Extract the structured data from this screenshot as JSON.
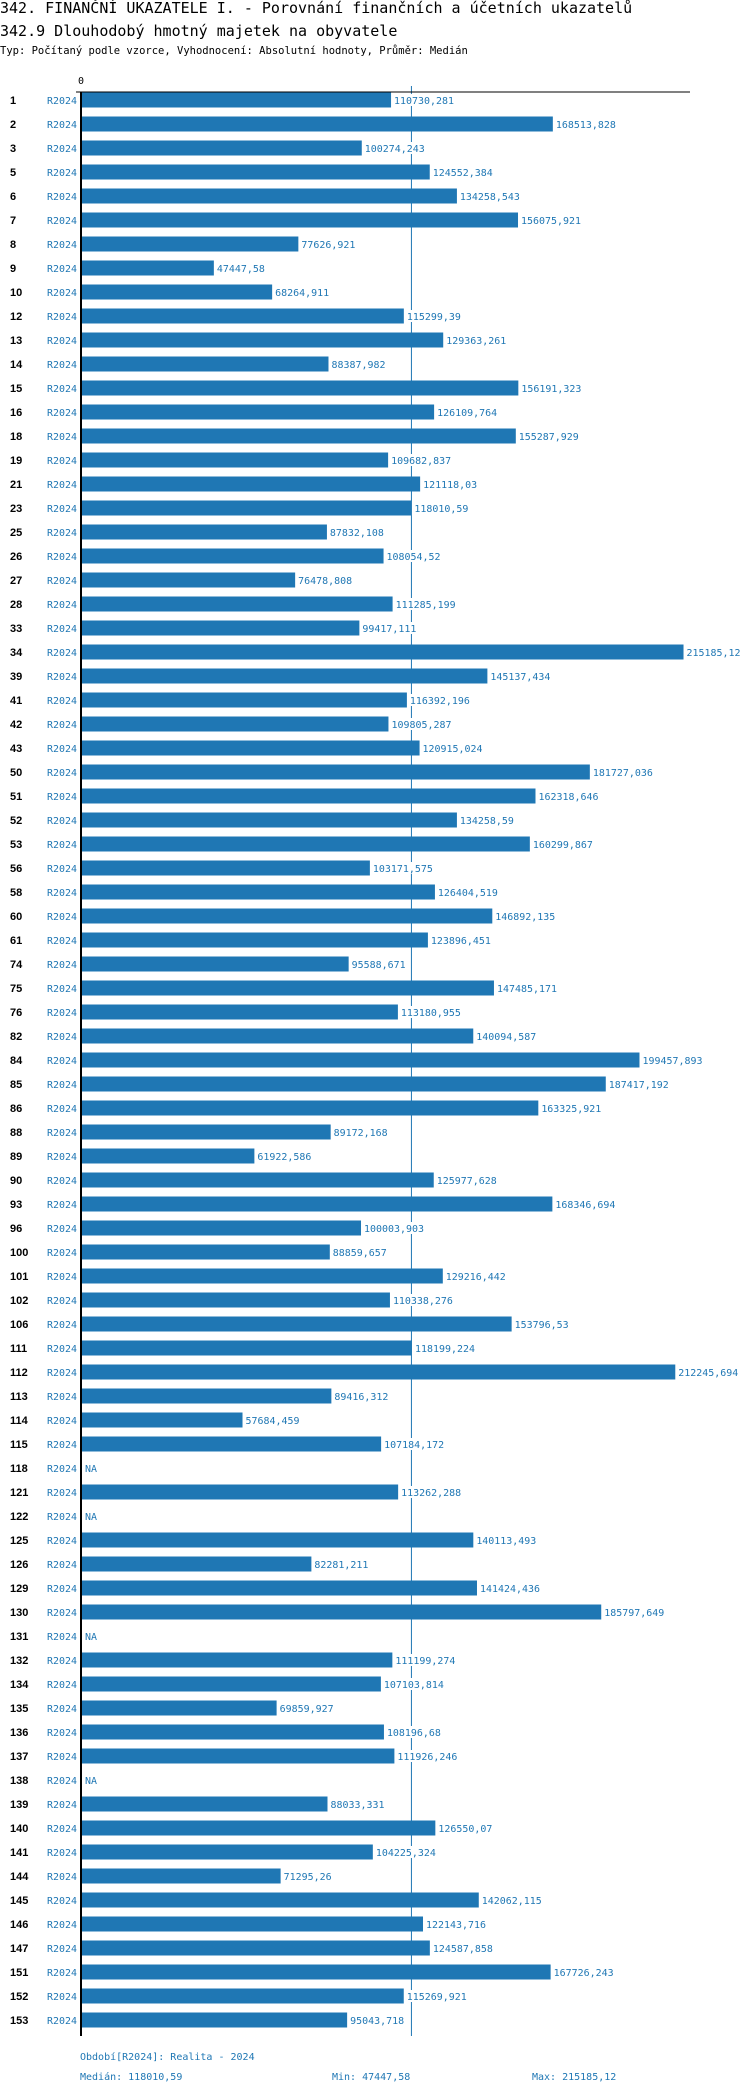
{
  "header": {
    "title": "342. FINANČNÍ UKAZATELE I. - Porovnání finančních a účetních ukazatelů",
    "subtitle": "342.9 Dlouhodobý hmotný majetek na obyvatele",
    "type_line": "Typ: Počítaný podle vzorce, Vyhodnocení: Absolutní hodnoty, Průměr: Medián"
  },
  "footer": {
    "period": "Období[R2024]: Realita - 2024",
    "median": "Medián: 118010,59",
    "min": "Min: 47447,58",
    "max": "Max: 215185,12"
  },
  "colors": {
    "bar": "#1f77b4",
    "text_blue": "#1f77b4",
    "axis": "#000000"
  },
  "chart_data": {
    "type": "bar",
    "orientation": "horizontal",
    "title": "342.9 Dlouhodobý hmotný majetek na obyvatele",
    "x_tick_labels": [
      "0"
    ],
    "xlim": [
      0,
      215185.12
    ],
    "reference_line": {
      "name": "Medián",
      "value": 118010.59
    },
    "period": "R2024",
    "categories": [
      "1",
      "2",
      "3",
      "5",
      "6",
      "7",
      "8",
      "9",
      "10",
      "12",
      "13",
      "14",
      "15",
      "16",
      "18",
      "19",
      "21",
      "23",
      "25",
      "26",
      "27",
      "28",
      "33",
      "34",
      "39",
      "41",
      "42",
      "43",
      "50",
      "51",
      "52",
      "53",
      "56",
      "58",
      "60",
      "61",
      "74",
      "75",
      "76",
      "82",
      "84",
      "85",
      "86",
      "88",
      "89",
      "90",
      "93",
      "96",
      "100",
      "101",
      "102",
      "106",
      "111",
      "112",
      "113",
      "114",
      "115",
      "118",
      "121",
      "122",
      "125",
      "126",
      "129",
      "130",
      "131",
      "132",
      "134",
      "135",
      "136",
      "137",
      "138",
      "139",
      "140",
      "141",
      "144",
      "145",
      "146",
      "147",
      "151",
      "152",
      "153"
    ],
    "value_labels": [
      "110730,281",
      "168513,828",
      "100274,243",
      "124552,384",
      "134258,543",
      "156075,921",
      "77626,921",
      "47447,58",
      "68264,911",
      "115299,39",
      "129363,261",
      "88387,982",
      "156191,323",
      "126109,764",
      "155287,929",
      "109682,837",
      "121118,03",
      "118010,59",
      "87832,108",
      "108054,52",
      "76478,808",
      "111285,199",
      "99417,111",
      "215185,12",
      "145137,434",
      "116392,196",
      "109805,287",
      "120915,024",
      "181727,036",
      "162318,646",
      "134258,59",
      "160299,867",
      "103171,575",
      "126404,519",
      "146892,135",
      "123896,451",
      "95588,671",
      "147485,171",
      "113180,955",
      "140094,587",
      "199457,893",
      "187417,192",
      "163325,921",
      "89172,168",
      "61922,586",
      "125977,628",
      "168346,694",
      "100003,903",
      "88859,657",
      "129216,442",
      "110338,276",
      "153796,53",
      "118199,224",
      "212245,694",
      "89416,312",
      "57684,459",
      "107184,172",
      "NA",
      "113262,288",
      "NA",
      "140113,493",
      "82281,211",
      "141424,436",
      "185797,649",
      "NA",
      "111199,274",
      "107103,814",
      "69859,927",
      "108196,68",
      "111926,246",
      "NA",
      "88033,331",
      "126550,07",
      "104225,324",
      "71295,26",
      "142062,115",
      "122143,716",
      "124587,858",
      "167726,243",
      "115269,921",
      "95043,718"
    ]
  }
}
